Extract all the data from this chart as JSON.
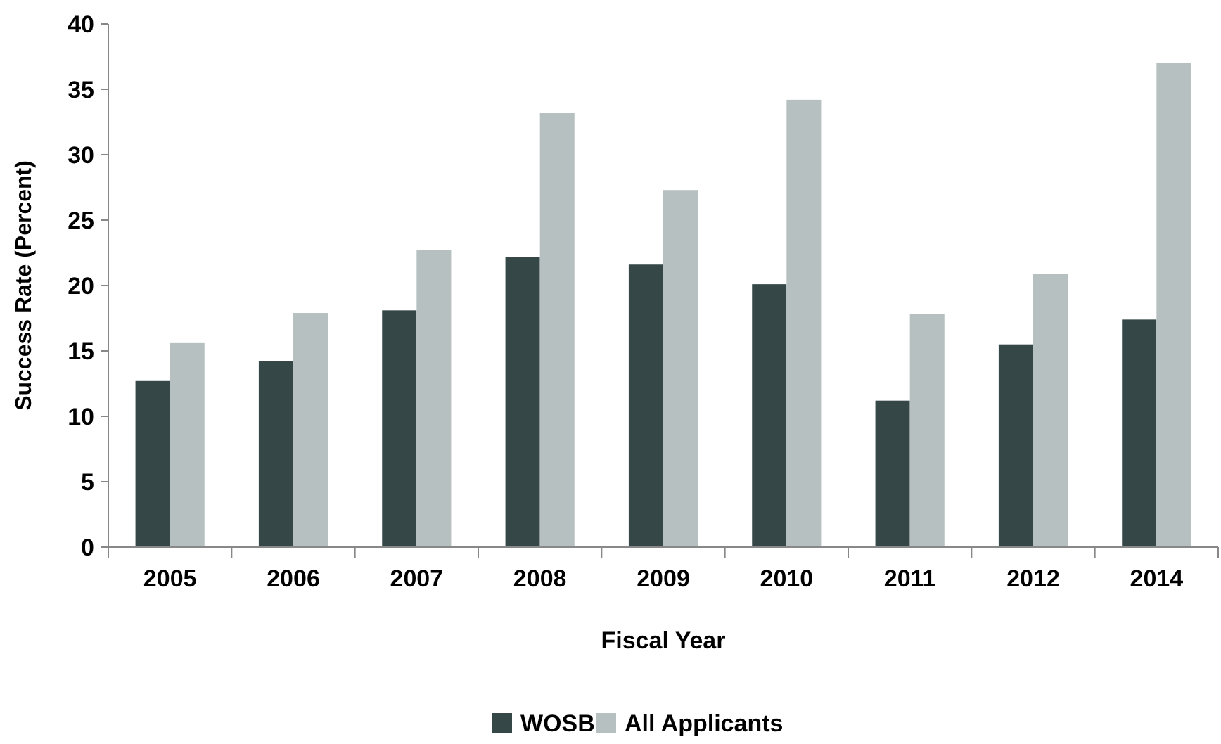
{
  "chart_data": {
    "type": "bar",
    "xlabel": "Fiscal Year",
    "ylabel": "Success Rate (Percent)",
    "categories": [
      "2005",
      "2006",
      "2007",
      "2008",
      "2009",
      "2010",
      "2011",
      "2012",
      "2014"
    ],
    "series": [
      {
        "name": "WOSB",
        "color": "#364748",
        "values": [
          12.7,
          14.2,
          18.1,
          22.2,
          21.6,
          20.1,
          11.2,
          15.5,
          17.4
        ]
      },
      {
        "name": "All Applicants",
        "color": "#b7c0c0",
        "values": [
          15.6,
          17.9,
          22.7,
          33.2,
          27.3,
          34.2,
          17.8,
          20.9,
          37.0
        ]
      }
    ],
    "ylim": [
      0,
      40
    ],
    "yticks": [
      0,
      5,
      10,
      15,
      20,
      25,
      30,
      35,
      40
    ],
    "grid": false,
    "legend": "bottom"
  }
}
